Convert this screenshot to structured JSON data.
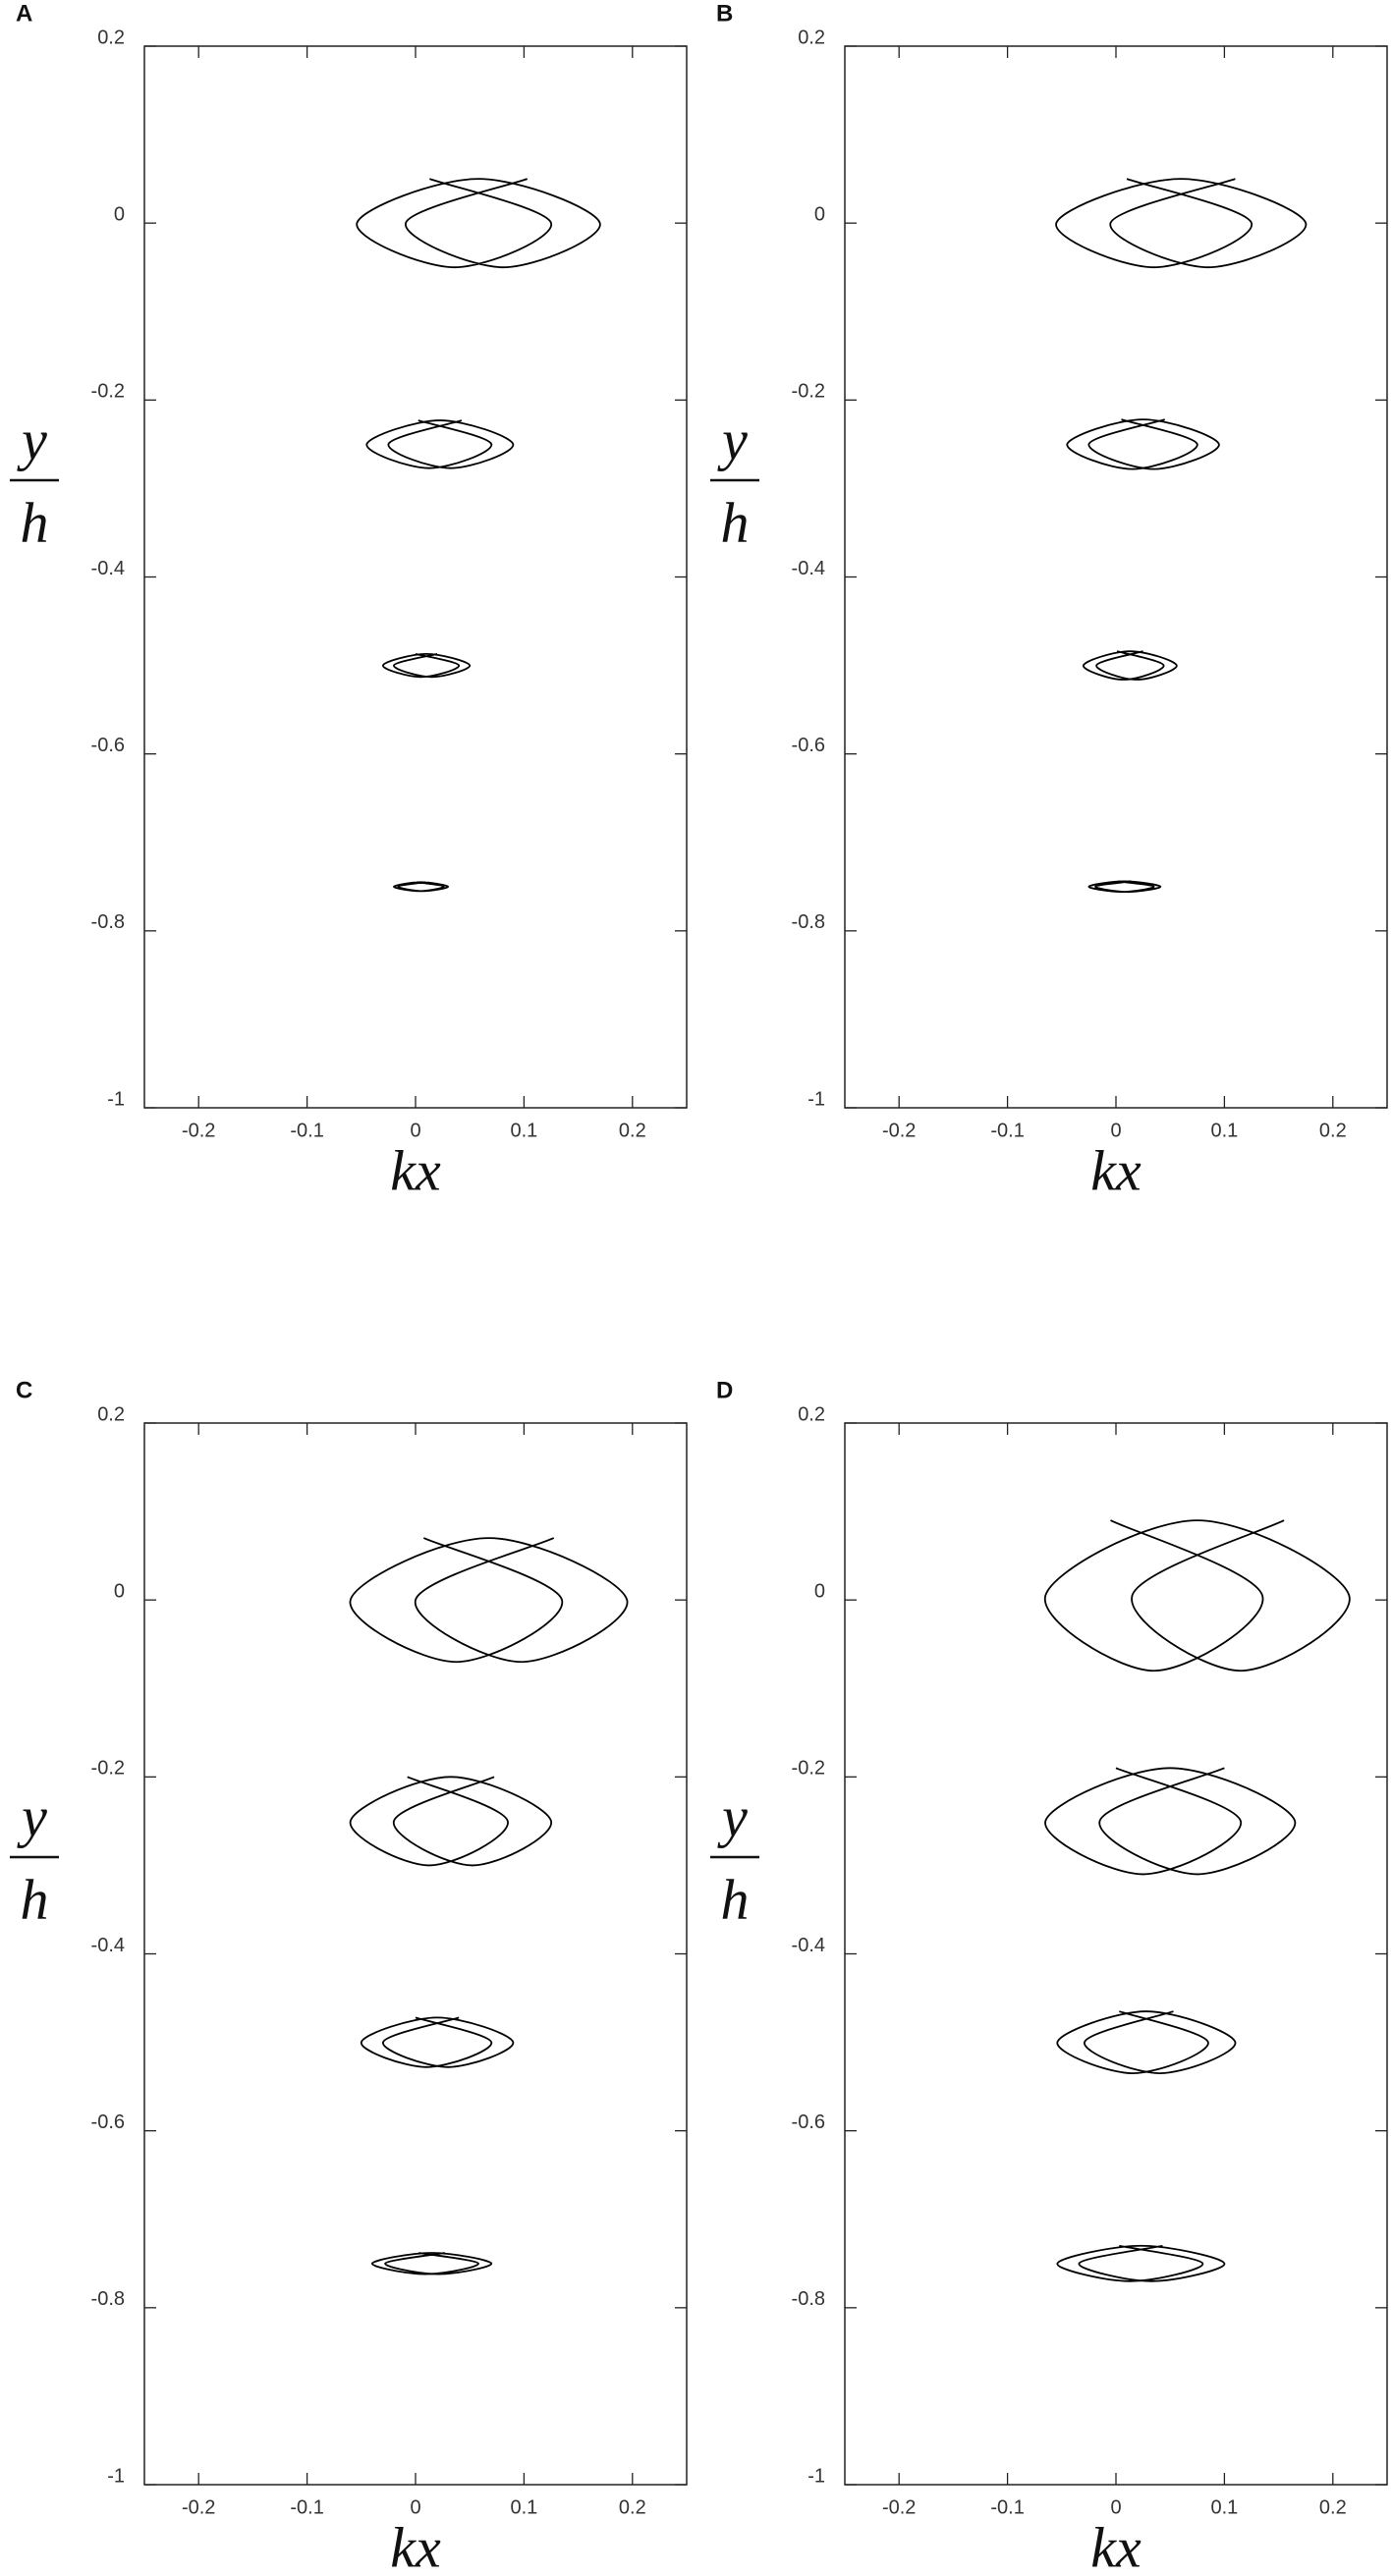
{
  "chart_data": [
    {
      "panel": "A",
      "type": "line",
      "xlabel": "kx",
      "ylabel": [
        "y",
        "h"
      ],
      "xlim": [
        -0.25,
        0.25
      ],
      "ylim": [
        -1,
        0.2
      ],
      "xticks": [
        -0.2,
        -0.1,
        0,
        0.1,
        0.2
      ],
      "yticks": [
        0.2,
        0,
        -0.2,
        -0.4,
        -0.6,
        -0.8,
        -1
      ],
      "series": [
        {
          "color": "#000000",
          "x": [
            0.013,
            0.125,
            0.036,
            -0.054,
            0.058,
            0.17,
            0.081,
            -0.009,
            0.103
          ],
          "values": [
            0.05,
            0,
            -0.05,
            0,
            0.05,
            0,
            -0.05,
            0,
            0.05
          ]
        },
        {
          "color": "#000000",
          "x": [
            0.0025,
            0.07,
            0.0125,
            -0.045,
            0.0225,
            0.09,
            0.0325,
            -0.025,
            0.0425
          ],
          "values": [
            -0.223,
            -0.25,
            -0.277,
            -0.25,
            -0.223,
            -0.25,
            -0.277,
            -0.25,
            -0.223
          ]
        },
        {
          "color": "#000000",
          "x": [
            0,
            0.04,
            0.005,
            -0.03,
            0.01,
            0.05,
            0.015,
            -0.02,
            0.02
          ],
          "values": [
            -0.487,
            -0.5,
            -0.513,
            -0.5,
            -0.487,
            -0.5,
            -0.513,
            -0.5,
            -0.487
          ]
        },
        {
          "color": "#000000",
          "x": [
            0.001,
            0.026,
            0.003,
            -0.02,
            0.005,
            0.03,
            0.007,
            -0.016,
            0.009
          ],
          "values": [
            -0.745,
            -0.75,
            -0.755,
            -0.75,
            -0.745,
            -0.75,
            -0.755,
            -0.75,
            -0.745
          ]
        }
      ]
    },
    {
      "panel": "B",
      "type": "line",
      "xlabel": "kx",
      "ylabel": [
        "y",
        "h"
      ],
      "xlim": [
        -0.25,
        0.25
      ],
      "ylim": [
        -1,
        0.2
      ],
      "xticks": [
        -0.2,
        -0.1,
        0,
        0.1,
        0.2
      ],
      "yticks": [
        0.2,
        0,
        -0.2,
        -0.4,
        -0.6,
        -0.8,
        -1
      ],
      "series": [
        {
          "color": "#000000",
          "x": [
            0.01,
            0.125,
            0.035,
            -0.055,
            0.06,
            0.175,
            0.085,
            -0.005,
            0.11
          ],
          "values": [
            0.05,
            0,
            -0.05,
            0,
            0.05,
            0,
            -0.05,
            0,
            0.05
          ]
        },
        {
          "color": "#000000",
          "x": [
            0.005,
            0.075,
            0.015,
            -0.045,
            0.025,
            0.095,
            0.035,
            -0.025,
            0.045
          ],
          "values": [
            -0.222,
            -0.25,
            -0.278,
            -0.25,
            -0.222,
            -0.25,
            -0.278,
            -0.25,
            -0.222
          ]
        },
        {
          "color": "#000000",
          "x": [
            0.001,
            0.044,
            0.007,
            -0.03,
            0.013,
            0.056,
            0.019,
            -0.018,
            0.025
          ],
          "values": [
            -0.484,
            -0.5,
            -0.516,
            -0.5,
            -0.484,
            -0.5,
            -0.516,
            -0.5,
            -0.484
          ]
        },
        {
          "color": "#000000",
          "x": [
            0.002,
            0.035,
            0.005,
            -0.025,
            0.008,
            0.041,
            0.011,
            -0.019,
            0.014
          ],
          "values": [
            -0.744,
            -0.75,
            -0.756,
            -0.75,
            -0.744,
            -0.75,
            -0.756,
            -0.75,
            -0.744
          ]
        }
      ]
    },
    {
      "panel": "C",
      "type": "line",
      "xlabel": "kx",
      "ylabel": [
        "y",
        "h"
      ],
      "xlim": [
        -0.25,
        0.25
      ],
      "ylim": [
        -1,
        0.2
      ],
      "xticks": [
        -0.2,
        -0.1,
        0,
        0.1,
        0.2
      ],
      "yticks": [
        0.2,
        0,
        -0.2,
        -0.4,
        -0.6,
        -0.8,
        -1
      ],
      "series": [
        {
          "color": "#000000",
          "x": [
            0.0075,
            0.135,
            0.0375,
            -0.06,
            0.0675,
            0.195,
            0.0975,
            0,
            0.1275
          ],
          "values": [
            0.07,
            0,
            -0.07,
            0,
            0.07,
            0,
            -0.07,
            0,
            0.07
          ]
        },
        {
          "color": "#000000",
          "x": [
            -0.0075,
            0.085,
            0.0125,
            -0.06,
            0.0325,
            0.125,
            0.0525,
            -0.02,
            0.0725
          ],
          "values": [
            -0.2,
            -0.25,
            -0.3,
            -0.25,
            -0.2,
            -0.25,
            -0.3,
            -0.25,
            -0.2
          ]
        },
        {
          "color": "#000000",
          "x": [
            0,
            0.07,
            0.01,
            -0.05,
            0.02,
            0.09,
            0.03,
            -0.03,
            0.04
          ],
          "values": [
            -0.472,
            -0.5,
            -0.528,
            -0.5,
            -0.472,
            -0.5,
            -0.528,
            -0.5,
            -0.472
          ]
        },
        {
          "color": "#000000",
          "x": [
            0.003,
            0.058,
            0.009,
            -0.04,
            0.015,
            0.07,
            0.021,
            -0.028,
            0.027
          ],
          "values": [
            -0.738,
            -0.75,
            -0.762,
            -0.75,
            -0.738,
            -0.75,
            -0.762,
            -0.75,
            -0.738
          ]
        }
      ]
    },
    {
      "panel": "D",
      "type": "line",
      "xlabel": "kx",
      "ylabel": [
        "y",
        "h"
      ],
      "xlim": [
        -0.25,
        0.25
      ],
      "ylim": [
        -1,
        0.2
      ],
      "xticks": [
        -0.2,
        -0.1,
        0,
        0.1,
        0.2
      ],
      "yticks": [
        0.2,
        0,
        -0.2,
        -0.4,
        -0.6,
        -0.8,
        -1
      ],
      "series": [
        {
          "color": "#000000",
          "x": [
            -0.005,
            0.135,
            0.035,
            -0.065,
            0.075,
            0.215,
            0.115,
            0.015,
            0.155
          ],
          "values": [
            0.09,
            0.005,
            -0.08,
            0.005,
            0.09,
            0.005,
            -0.08,
            0.005,
            0.09
          ]
        },
        {
          "color": "#000000",
          "x": [
            0,
            0.115,
            0.025,
            -0.065,
            0.05,
            0.165,
            0.075,
            -0.015,
            0.1
          ],
          "values": [
            -0.19,
            -0.25,
            -0.31,
            -0.25,
            -0.19,
            -0.25,
            -0.31,
            -0.25,
            -0.19
          ]
        },
        {
          "color": "#000000",
          "x": [
            0.003,
            0.085,
            0.0155,
            -0.054,
            0.028,
            0.11,
            0.0405,
            -0.029,
            0.053
          ],
          "values": [
            -0.465,
            -0.5,
            -0.535,
            -0.5,
            -0.465,
            -0.5,
            -0.535,
            -0.5,
            -0.465
          ]
        },
        {
          "color": "#000000",
          "x": [
            0.003,
            0.08,
            0.013,
            -0.054,
            0.023,
            0.1,
            0.033,
            -0.034,
            0.043
          ],
          "values": [
            -0.73,
            -0.75,
            -0.77,
            -0.75,
            -0.73,
            -0.75,
            -0.77,
            -0.75,
            -0.73
          ]
        }
      ]
    }
  ]
}
